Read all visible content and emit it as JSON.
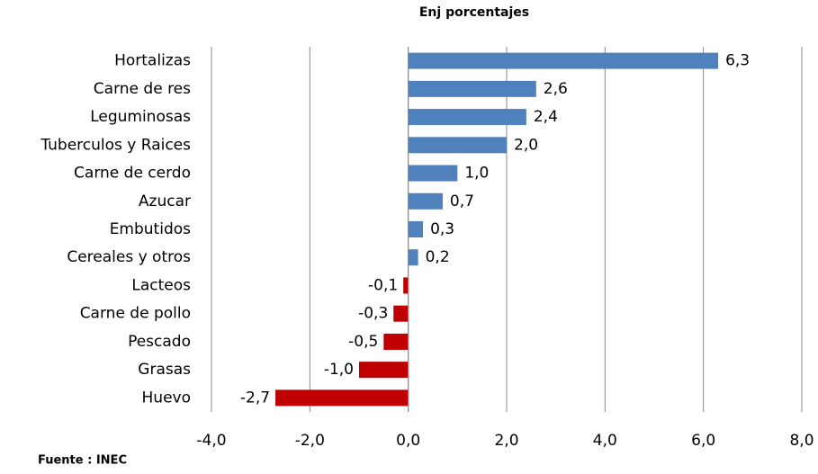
{
  "chart_data": {
    "type": "bar",
    "orientation": "horizontal",
    "title": "Enj porcentajes",
    "source": "Fuente : INEC",
    "categories": [
      "Hortalizas",
      "Carne de res",
      "Leguminosas",
      "Tuberculos y Raices",
      "Carne de cerdo",
      "Azucar",
      "Embutidos",
      "Cereales y otros",
      "Lacteos",
      "Carne de pollo",
      "Pescado",
      "Grasas",
      "Huevo"
    ],
    "values": [
      6.3,
      2.6,
      2.4,
      2.0,
      1.0,
      0.7,
      0.3,
      0.2,
      -0.1,
      -0.3,
      -0.5,
      -1.0,
      -2.7
    ],
    "value_labels": [
      "6,3",
      "2,6",
      "2,4",
      "2,0",
      "1,0",
      "0,7",
      "0,3",
      "0,2",
      "-0,1",
      "-0,3",
      "-0,5",
      "-1,0",
      "-2,7"
    ],
    "colors": [
      "#4f81bd",
      "#4f81bd",
      "#4f81bd",
      "#4f81bd",
      "#4f81bd",
      "#4f81bd",
      "#4f81bd",
      "#4f81bd",
      "#c00000",
      "#c00000",
      "#c00000",
      "#c00000",
      "#c00000"
    ],
    "xlim": [
      -4,
      8
    ],
    "xticks": [
      {
        "value": -4,
        "label": "-4,0"
      },
      {
        "value": -2,
        "label": "-2,0"
      },
      {
        "value": 0,
        "label": "0,0"
      },
      {
        "value": 2,
        "label": "2,0"
      },
      {
        "value": 4,
        "label": "4,0"
      },
      {
        "value": 6,
        "label": "6,0"
      },
      {
        "value": 8,
        "label": "8,0"
      }
    ],
    "grid": true
  }
}
